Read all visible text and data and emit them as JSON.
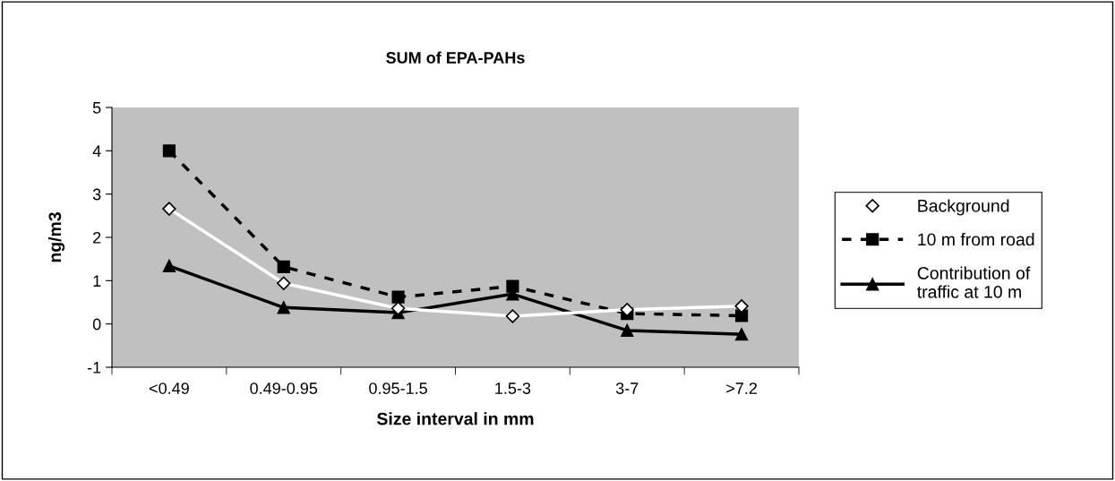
{
  "chart_data": {
    "type": "line",
    "title": "SUM of EPA-PAHs",
    "xlabel": "Size interval in mm",
    "ylabel": "ng/m3",
    "categories": [
      "<0.49",
      "0.49-0.95",
      "0.95-1.5",
      "1.5-3",
      "3-7",
      ">7.2"
    ],
    "ylim": [
      -1,
      5
    ],
    "yticks": [
      -1,
      0,
      1,
      2,
      3,
      4,
      5
    ],
    "legend": "right",
    "grid": false,
    "series": [
      {
        "name": "Background",
        "color": "#ffffff",
        "marker": "diamond",
        "line_style": "solid",
        "values": [
          2.66,
          0.94,
          0.36,
          0.18,
          0.33,
          0.41
        ]
      },
      {
        "name": "10 m from road",
        "color": "#000000",
        "marker": "square",
        "line_style": "dashed",
        "values": [
          4.0,
          1.32,
          0.62,
          0.87,
          0.24,
          0.19
        ]
      },
      {
        "name": "Contribution of\ntraffic at 10 m",
        "color": "#000000",
        "marker": "triangle",
        "line_style": "solid",
        "values": [
          1.34,
          0.38,
          0.26,
          0.69,
          -0.15,
          -0.24
        ]
      }
    ]
  }
}
